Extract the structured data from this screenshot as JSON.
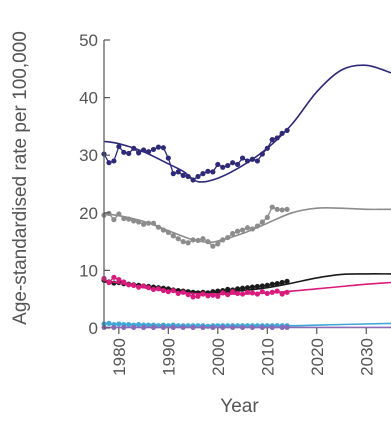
{
  "chart_data": {
    "type": "line",
    "title": "",
    "xlabel": "Year",
    "ylabel": "Age-standardised rate per 100,000",
    "xlim": [
      1977,
      2035
    ],
    "ylim": [
      0,
      50
    ],
    "x_ticks": [
      1980,
      1990,
      2000,
      2010,
      2020,
      2030
    ],
    "y_ticks": [
      0,
      10,
      20,
      30,
      40,
      50
    ],
    "x_tick_labels": [
      "1980",
      "1990",
      "2000",
      "2010",
      "2020",
      "2030"
    ],
    "y_tick_labels": [
      "0",
      "10",
      "20",
      "30",
      "40",
      "50"
    ],
    "grid": false,
    "legend": "none",
    "series": [
      {
        "color": "#2e2a78",
        "observed_years": [
          1977,
          1978,
          1979,
          1980,
          1981,
          1982,
          1983,
          1984,
          1985,
          1986,
          1987,
          1988,
          1989,
          1990,
          1991,
          1992,
          1993,
          1994,
          1995,
          1996,
          1997,
          1998,
          1999,
          2000,
          2001,
          2002,
          2003,
          2004,
          2005,
          2006,
          2007,
          2008,
          2009,
          2010,
          2011,
          2012,
          2013,
          2014
        ],
        "observed_values": [
          30.2,
          28.7,
          29.0,
          31.5,
          30.5,
          30.3,
          31.2,
          30.4,
          30.9,
          30.6,
          31.0,
          31.4,
          31.3,
          29.5,
          26.8,
          27.1,
          26.5,
          26.3,
          25.7,
          26.3,
          26.8,
          27.2,
          27.1,
          28.4,
          27.9,
          28.2,
          28.7,
          28.4,
          29.5,
          29.0,
          29.3,
          29.0,
          30.2,
          31.2,
          32.7,
          33.0,
          33.8,
          34.3
        ],
        "trend_years": [
          1977,
          1980,
          1985,
          1990,
          1993,
          1996,
          2000,
          2005,
          2010,
          2015,
          2020,
          2025,
          2030,
          2035
        ],
        "trend_values": [
          32.4,
          32.0,
          30.6,
          28.5,
          27.2,
          25.4,
          26.0,
          28.2,
          31.2,
          35.4,
          41.0,
          44.8,
          45.6,
          44.3
        ]
      },
      {
        "color": "#8c8c8c",
        "observed_years": [
          1977,
          1978,
          1979,
          1980,
          1981,
          1982,
          1983,
          1984,
          1985,
          1986,
          1987,
          1988,
          1989,
          1990,
          1991,
          1992,
          1993,
          1994,
          1995,
          1996,
          1997,
          1998,
          1999,
          2000,
          2001,
          2002,
          2003,
          2004,
          2005,
          2006,
          2007,
          2008,
          2009,
          2010,
          2011,
          2012,
          2013,
          2014
        ],
        "observed_values": [
          19.6,
          19.9,
          18.8,
          19.8,
          19.0,
          18.9,
          18.6,
          18.4,
          18.0,
          18.2,
          18.2,
          17.5,
          17.0,
          16.6,
          16.0,
          15.5,
          15.0,
          14.8,
          15.3,
          15.2,
          15.5,
          15.0,
          14.2,
          14.6,
          15.3,
          15.7,
          16.4,
          16.8,
          17.0,
          17.4,
          17.2,
          17.7,
          18.4,
          19.2,
          21.0,
          20.6,
          20.5,
          20.6
        ],
        "trend_years": [
          1977,
          1980,
          1985,
          1990,
          1995,
          1998,
          2000,
          2005,
          2010,
          2015,
          2020,
          2025,
          2030,
          2035
        ],
        "trend_values": [
          19.8,
          19.5,
          18.5,
          16.9,
          15.3,
          14.9,
          15.1,
          16.4,
          18.2,
          20.0,
          20.8,
          20.8,
          20.6,
          20.6
        ]
      },
      {
        "color": "#1a1a1a",
        "observed_years": [
          1977,
          1978,
          1979,
          1980,
          1981,
          1982,
          1983,
          1984,
          1985,
          1986,
          1987,
          1988,
          1989,
          1990,
          1991,
          1992,
          1993,
          1994,
          1995,
          1996,
          1997,
          1998,
          1999,
          2000,
          2001,
          2002,
          2003,
          2004,
          2005,
          2006,
          2007,
          2008,
          2009,
          2010,
          2011,
          2012,
          2013,
          2014
        ],
        "observed_values": [
          8.3,
          8.0,
          7.8,
          7.9,
          7.7,
          7.6,
          7.5,
          7.4,
          7.3,
          7.2,
          7.1,
          7.0,
          6.9,
          6.8,
          6.6,
          6.5,
          6.4,
          6.3,
          6.2,
          6.1,
          6.2,
          6.1,
          6.3,
          6.4,
          6.5,
          6.7,
          6.6,
          6.8,
          6.9,
          7.0,
          7.1,
          7.2,
          7.3,
          7.4,
          7.6,
          7.7,
          7.9,
          8.1
        ],
        "trend_years": [
          1977,
          1980,
          1985,
          1990,
          1995,
          2000,
          2005,
          2010,
          2015,
          2020,
          2025,
          2030,
          2035
        ],
        "trend_values": [
          8.0,
          7.8,
          7.3,
          6.8,
          6.3,
          6.2,
          6.5,
          7.0,
          7.8,
          8.7,
          9.3,
          9.4,
          9.4
        ]
      },
      {
        "color": "#d81b7c",
        "observed_years": [
          1977,
          1978,
          1979,
          1980,
          1981,
          1982,
          1983,
          1984,
          1985,
          1986,
          1987,
          1988,
          1989,
          1990,
          1991,
          1992,
          1993,
          1994,
          1995,
          1996,
          1997,
          1998,
          1999,
          2000,
          2001,
          2002,
          2003,
          2004,
          2005,
          2006,
          2007,
          2008,
          2009,
          2010,
          2011,
          2012,
          2013,
          2014
        ],
        "observed_values": [
          8.6,
          7.9,
          8.8,
          8.4,
          8.0,
          7.5,
          7.4,
          7.1,
          7.3,
          7.0,
          6.7,
          6.8,
          6.5,
          6.3,
          6.5,
          6.0,
          6.2,
          5.8,
          5.4,
          5.5,
          5.9,
          5.6,
          5.7,
          5.5,
          6.1,
          5.8,
          6.3,
          6.0,
          5.9,
          6.2,
          6.1,
          5.9,
          6.3,
          6.0,
          6.2,
          6.4,
          5.9,
          6.2
        ],
        "trend_years": [
          1977,
          1980,
          1985,
          1990,
          1995,
          2000,
          2005,
          2010,
          2015,
          2020,
          2025,
          2030,
          2035
        ],
        "trend_values": [
          8.3,
          7.8,
          7.0,
          6.4,
          6.0,
          5.9,
          5.9,
          6.1,
          6.4,
          6.8,
          7.2,
          7.6,
          7.9
        ]
      },
      {
        "color": "#3fa7d6",
        "observed_years": [
          1977,
          1978,
          1979,
          1980,
          1981,
          1982,
          1983,
          1984,
          1985,
          1986,
          1987,
          1988,
          1989,
          1990,
          1991,
          1992,
          1993,
          1994,
          1995,
          1996,
          1997,
          1998,
          1999,
          2000,
          2001,
          2002,
          2003,
          2004,
          2005,
          2006,
          2007,
          2008,
          2009,
          2010,
          2011,
          2012,
          2013,
          2014
        ],
        "observed_values": [
          0.7,
          0.8,
          0.6,
          0.7,
          0.6,
          0.6,
          0.5,
          0.6,
          0.5,
          0.5,
          0.5,
          0.4,
          0.5,
          0.4,
          0.5,
          0.4,
          0.4,
          0.4,
          0.4,
          0.4,
          0.4,
          0.3,
          0.4,
          0.4,
          0.4,
          0.4,
          0.4,
          0.4,
          0.4,
          0.4,
          0.4,
          0.4,
          0.4,
          0.4,
          0.4,
          0.4,
          0.4,
          0.4
        ],
        "trend_years": [
          1977,
          1985,
          1995,
          2005,
          2015,
          2025,
          2035
        ],
        "trend_values": [
          0.7,
          0.6,
          0.4,
          0.4,
          0.4,
          0.6,
          0.8
        ]
      },
      {
        "color": "#8b6bb8",
        "observed_years": [
          1977,
          1979,
          1981,
          1983,
          1985,
          1987,
          1989,
          1991,
          1993,
          1995,
          1997,
          1999,
          2001,
          2003,
          2005,
          2007,
          2009,
          2011,
          2013,
          2014
        ],
        "observed_values": [
          0.1,
          0.1,
          0.1,
          0.1,
          0.1,
          0.1,
          0.1,
          0.1,
          0.1,
          0.1,
          0.1,
          0.1,
          0.1,
          0.1,
          0.1,
          0.1,
          0.1,
          0.1,
          0.1,
          0.1
        ],
        "trend_years": [
          1977,
          1995,
          2014,
          2035
        ],
        "trend_values": [
          0.1,
          0.1,
          0.1,
          0.1
        ]
      }
    ]
  }
}
